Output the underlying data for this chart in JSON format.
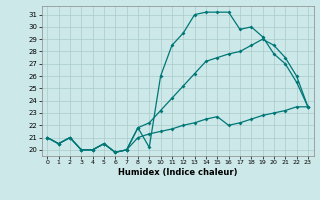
{
  "xlabel": "Humidex (Indice chaleur)",
  "bg_color": "#cde8e8",
  "grid_color": "#aacccc",
  "line_color": "#007777",
  "xlim": [
    -0.5,
    23.5
  ],
  "ylim": [
    19.5,
    31.7
  ],
  "yticks": [
    20,
    21,
    22,
    23,
    24,
    25,
    26,
    27,
    28,
    29,
    30,
    31
  ],
  "xticks": [
    0,
    1,
    2,
    3,
    4,
    5,
    6,
    7,
    8,
    9,
    10,
    11,
    12,
    13,
    14,
    15,
    16,
    17,
    18,
    19,
    20,
    21,
    22,
    23
  ],
  "line1_x": [
    0,
    1,
    2,
    3,
    4,
    5,
    6,
    7,
    8,
    9,
    10,
    11,
    12,
    13,
    14,
    15,
    16,
    17,
    18,
    19,
    20,
    21,
    22,
    23
  ],
  "line1_y": [
    21.0,
    20.5,
    21.0,
    20.0,
    20.0,
    20.5,
    19.8,
    20.0,
    21.8,
    20.2,
    26.0,
    28.5,
    29.5,
    31.0,
    31.2,
    31.2,
    31.2,
    29.8,
    30.0,
    29.2,
    27.8,
    27.0,
    25.5,
    23.5
  ],
  "line2_x": [
    0,
    1,
    2,
    3,
    4,
    5,
    6,
    7,
    8,
    9,
    10,
    11,
    12,
    13,
    14,
    15,
    16,
    17,
    18,
    19,
    20,
    21,
    22,
    23
  ],
  "line2_y": [
    21.0,
    20.5,
    21.0,
    20.0,
    20.0,
    20.5,
    19.8,
    20.0,
    21.8,
    22.2,
    23.2,
    24.2,
    25.2,
    26.2,
    27.2,
    27.5,
    27.8,
    28.0,
    28.5,
    29.0,
    28.5,
    27.5,
    26.0,
    23.5
  ],
  "line3_x": [
    0,
    1,
    2,
    3,
    4,
    5,
    6,
    7,
    8,
    9,
    10,
    11,
    12,
    13,
    14,
    15,
    16,
    17,
    18,
    19,
    20,
    21,
    22,
    23
  ],
  "line3_y": [
    21.0,
    20.5,
    21.0,
    20.0,
    20.0,
    20.5,
    19.8,
    20.0,
    21.0,
    21.3,
    21.5,
    21.7,
    22.0,
    22.2,
    22.5,
    22.7,
    22.0,
    22.2,
    22.5,
    22.8,
    23.0,
    23.2,
    23.5,
    23.5
  ]
}
